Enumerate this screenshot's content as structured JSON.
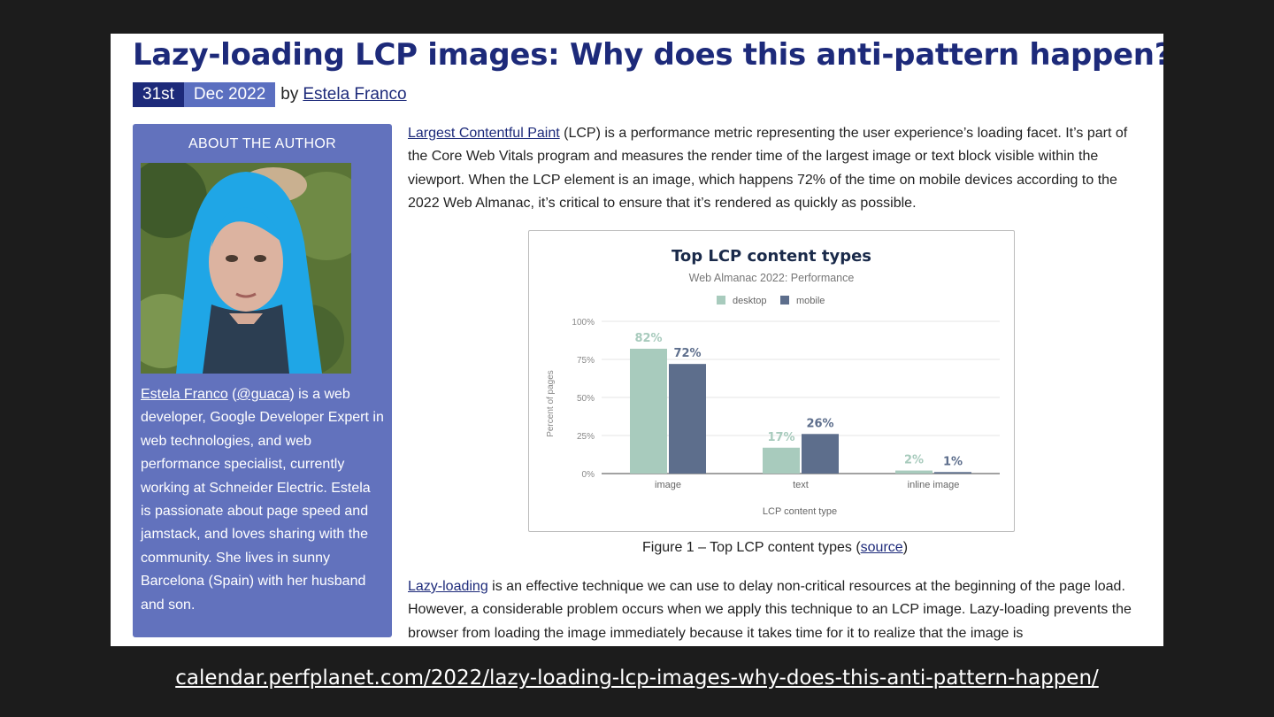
{
  "article": {
    "title": "Lazy-loading LCP images: Why does this anti-pattern happen?",
    "date_day": "31st",
    "date_month_year": "Dec 2022",
    "by": "by",
    "author": "Estela Franco"
  },
  "sidebar": {
    "heading": "ABOUT THE AUTHOR",
    "bio_name": "Estela Franco",
    "bio_handle": "@guaca",
    "bio_text": " is a web developer, Google Developer Expert in web technologies, and web performance specialist, currently working at Schneider Electric. Estela is passionate about page speed and jamstack, and loves sharing with the community. She lives in sunny Barcelona (Spain) with her husband and son."
  },
  "content": {
    "p1_link": "Largest Contentful Paint",
    "p1_text": " (LCP) is a performance metric representing the user experience’s loading facet. It’s part of the Core Web Vitals program and measures the render time of the largest image or text block visible within the viewport. When the LCP element is an image, which happens 72% of the time on mobile devices according to the 2022 Web Almanac, it’s critical to ensure that it’s rendered as quickly as possible.",
    "caption_text": "Figure 1 – Top LCP content types (",
    "caption_link": "source",
    "caption_end": ")",
    "p2_link": "Lazy-loading",
    "p2_text": " is an effective technique we can use to delay non-critical resources at the beginning of the page load. However, a considerable problem occurs when we apply this technique to an LCP image. Lazy-loading prevents the browser from loading the image immediately because it takes time for it to realize that the image is"
  },
  "chart_data": {
    "type": "bar",
    "title": "Top LCP content types",
    "subtitle": "Web Almanac 2022: Performance",
    "xlabel": "LCP content type",
    "ylabel": "Percent of pages",
    "categories": [
      "image",
      "text",
      "inline image"
    ],
    "ylim": [
      0,
      100
    ],
    "yticks": [
      "0%",
      "25%",
      "50%",
      "75%",
      "100%"
    ],
    "ytick_values": [
      0,
      25,
      50,
      75,
      100
    ],
    "legend_position": "top",
    "grid": true,
    "series": [
      {
        "name": "desktop",
        "color": "#a8cbbd",
        "values": [
          82,
          17,
          2
        ],
        "labels": [
          "82%",
          "17%",
          "2%"
        ]
      },
      {
        "name": "mobile",
        "color": "#5d6e8c",
        "values": [
          72,
          26,
          1
        ],
        "labels": [
          "72%",
          "26%",
          "1%"
        ]
      }
    ]
  },
  "footer": {
    "url": "calendar.perfplanet.com/2022/lazy-loading-lcp-images-why-does-this-anti-pattern-happen/"
  },
  "colors": {
    "brand_navy": "#1d2a7a",
    "sidebar_blue": "#6272bd"
  }
}
